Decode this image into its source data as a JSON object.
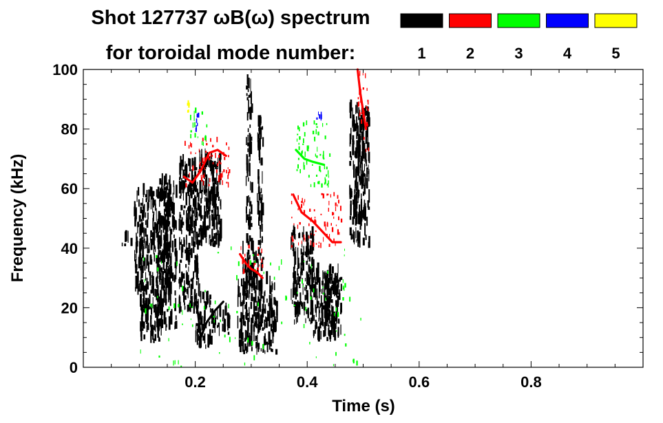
{
  "chart_data": {
    "type": "heatmap",
    "title_line1": "Shot 127737 ωB(ω) spectrum",
    "title_line2": "for toroidal mode number:",
    "xlabel": "Time (s)",
    "ylabel": "Frequency (kHz)",
    "xlim": [
      0.0,
      1.0
    ],
    "ylim": [
      0,
      100
    ],
    "x_ticks": [
      {
        "value": 0.2,
        "label": "0.2"
      },
      {
        "value": 0.4,
        "label": "0.4"
      },
      {
        "value": 0.6,
        "label": "0.6"
      },
      {
        "value": 0.8,
        "label": "0.8"
      }
    ],
    "y_ticks": [
      {
        "value": 0,
        "label": "0"
      },
      {
        "value": 20,
        "label": "20"
      },
      {
        "value": 40,
        "label": "40"
      },
      {
        "value": 60,
        "label": "60"
      },
      {
        "value": 80,
        "label": "80"
      },
      {
        "value": 100,
        "label": "100"
      }
    ],
    "legend": [
      {
        "n": "1",
        "color": "#000000"
      },
      {
        "n": "2",
        "color": "#ff0000"
      },
      {
        "n": "3",
        "color": "#00ff00"
      },
      {
        "n": "4",
        "color": "#0000ff"
      },
      {
        "n": "5",
        "color": "#ffff00"
      }
    ],
    "blobs": [
      {
        "mode": 1,
        "t0": 0.065,
        "t1": 0.085,
        "f0": 40.5,
        "f1": 42.5
      },
      {
        "mode": 1,
        "t0": 0.09,
        "t1": 0.155,
        "f0": 24,
        "f1": 58
      },
      {
        "mode": 1,
        "t0": 0.1,
        "t1": 0.14,
        "f0": 8,
        "f1": 24
      },
      {
        "mode": 1,
        "t0": 0.13,
        "t1": 0.165,
        "f0": 12,
        "f1": 62
      },
      {
        "mode": 1,
        "t0": 0.17,
        "t1": 0.205,
        "f0": 18,
        "f1": 68
      },
      {
        "mode": 1,
        "t0": 0.205,
        "t1": 0.245,
        "f0": 40,
        "f1": 70
      },
      {
        "mode": 1,
        "t0": 0.215,
        "t1": 0.235,
        "f0": 52,
        "f1": 60
      },
      {
        "mode": 1,
        "t0": 0.2,
        "t1": 0.23,
        "f0": 6,
        "f1": 24
      },
      {
        "mode": 1,
        "t0": 0.23,
        "t1": 0.26,
        "f0": 10,
        "f1": 18
      },
      {
        "mode": 1,
        "t0": 0.275,
        "t1": 0.345,
        "f0": 4,
        "f1": 28
      },
      {
        "mode": 1,
        "t0": 0.28,
        "t1": 0.31,
        "f0": 24,
        "f1": 40
      },
      {
        "mode": 1,
        "t0": 0.31,
        "t1": 0.32,
        "f0": 30,
        "f1": 82
      },
      {
        "mode": 1,
        "t0": 0.29,
        "t1": 0.3,
        "f0": 40,
        "f1": 95
      },
      {
        "mode": 1,
        "t0": 0.37,
        "t1": 0.41,
        "f0": 14,
        "f1": 45
      },
      {
        "mode": 1,
        "t0": 0.41,
        "t1": 0.455,
        "f0": 8,
        "f1": 32
      },
      {
        "mode": 1,
        "t0": 0.43,
        "t1": 0.46,
        "f0": 10,
        "f1": 30
      },
      {
        "mode": 1,
        "t0": 0.475,
        "t1": 0.51,
        "f0": 40,
        "f1": 86
      },
      {
        "mode": 1,
        "t0": 0.49,
        "t1": 0.5,
        "f0": 60,
        "f1": 80
      },
      {
        "mode": 2,
        "t0": 0.18,
        "t1": 0.26,
        "f0": 60,
        "f1": 76
      },
      {
        "mode": 2,
        "t0": 0.37,
        "t1": 0.46,
        "f0": 40,
        "f1": 58
      },
      {
        "mode": 2,
        "t0": 0.28,
        "t1": 0.32,
        "f0": 30,
        "f1": 40
      },
      {
        "mode": 2,
        "t0": 0.49,
        "t1": 0.51,
        "f0": 72,
        "f1": 100
      },
      {
        "mode": 3,
        "t0": 0.19,
        "t1": 0.22,
        "f0": 74,
        "f1": 86
      },
      {
        "mode": 3,
        "t0": 0.38,
        "t1": 0.44,
        "f0": 60,
        "f1": 82
      },
      {
        "mode": 3,
        "t0": 0.1,
        "t1": 0.5,
        "f0": 0,
        "f1": 40
      },
      {
        "mode": 4,
        "t0": 0.415,
        "t1": 0.425,
        "f0": 82,
        "f1": 85
      },
      {
        "mode": 4,
        "t0": 0.2,
        "t1": 0.205,
        "f0": 78,
        "f1": 84
      },
      {
        "mode": 5,
        "t0": 0.185,
        "t1": 0.19,
        "f0": 85,
        "f1": 88
      }
    ],
    "curves": [
      {
        "mode": 2,
        "points": [
          [
            0.18,
            64
          ],
          [
            0.195,
            62
          ],
          [
            0.21,
            66
          ],
          [
            0.225,
            72
          ],
          [
            0.24,
            73
          ],
          [
            0.255,
            71
          ]
        ]
      },
      {
        "mode": 2,
        "points": [
          [
            0.375,
            58
          ],
          [
            0.39,
            52
          ],
          [
            0.41,
            49
          ],
          [
            0.43,
            45
          ],
          [
            0.445,
            42
          ],
          [
            0.46,
            42
          ]
        ]
      },
      {
        "mode": 2,
        "points": [
          [
            0.28,
            38
          ],
          [
            0.29,
            35
          ],
          [
            0.3,
            33
          ],
          [
            0.31,
            32
          ],
          [
            0.32,
            30
          ]
        ]
      },
      {
        "mode": 2,
        "points": [
          [
            0.49,
            100
          ],
          [
            0.495,
            92
          ],
          [
            0.5,
            86
          ],
          [
            0.505,
            80
          ]
        ]
      },
      {
        "mode": 1,
        "points": [
          [
            0.2,
            22
          ],
          [
            0.205,
            18
          ],
          [
            0.21,
            10
          ],
          [
            0.22,
            15
          ],
          [
            0.235,
            19
          ],
          [
            0.25,
            22
          ]
        ]
      },
      {
        "mode": 3,
        "points": [
          [
            0.38,
            73
          ],
          [
            0.395,
            70
          ],
          [
            0.41,
            69
          ],
          [
            0.43,
            68
          ]
        ]
      }
    ]
  }
}
